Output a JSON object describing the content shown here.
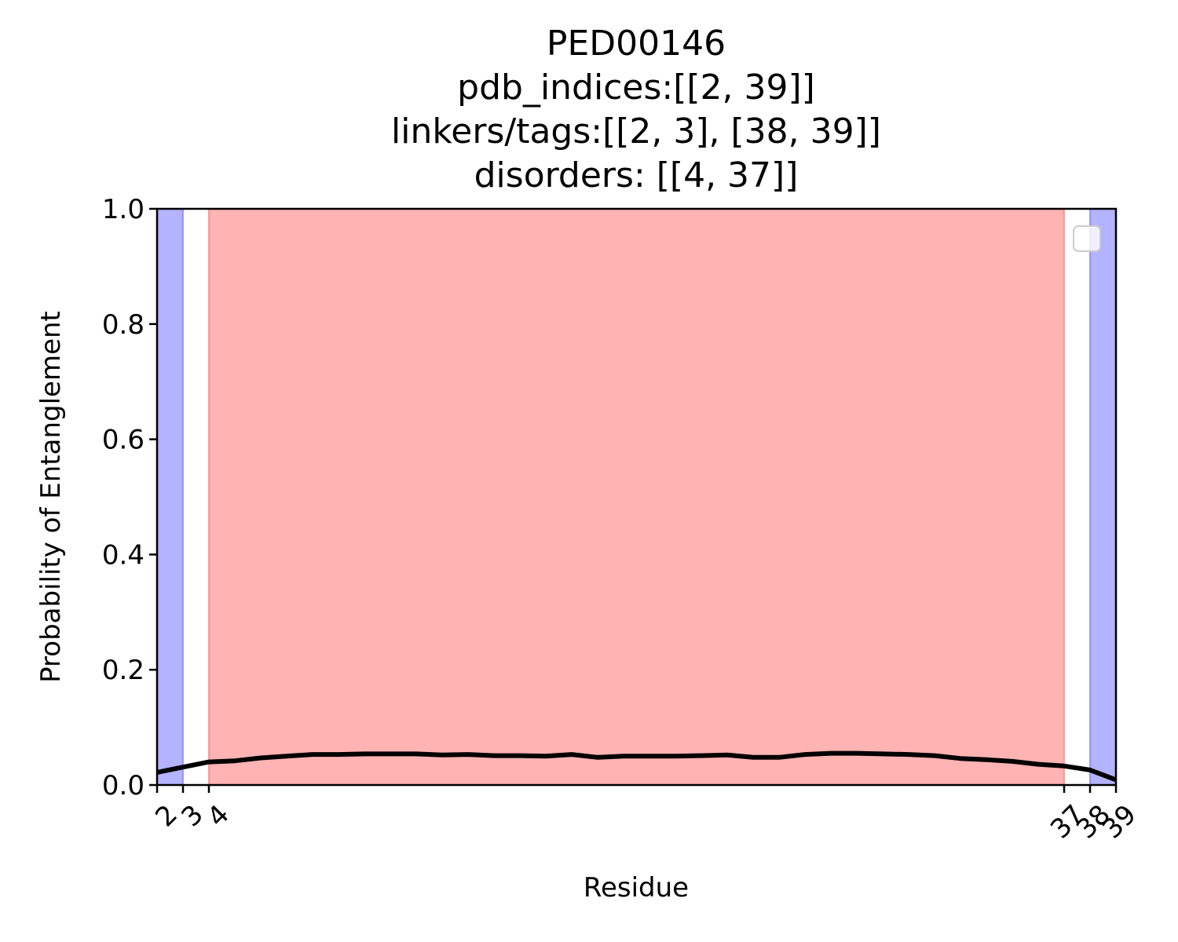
{
  "chart_data": {
    "type": "line",
    "title_lines": [
      "PED00146",
      "pdb_indices:[[2, 39]]",
      "linkers/tags:[[2, 3], [38, 39]]",
      "disorders: [[4, 37]]"
    ],
    "xlabel": "Residue",
    "ylabel": "Probability of Entanglement",
    "xlim": [
      2,
      39
    ],
    "ylim": [
      0,
      1.0
    ],
    "xticks": [
      2,
      3,
      4,
      37,
      38,
      39
    ],
    "xtick_labels": [
      "2",
      "3",
      "4",
      "37",
      "38",
      "39"
    ],
    "yticks": [
      0.0,
      0.2,
      0.4,
      0.6,
      0.8,
      1.0
    ],
    "ytick_labels": [
      "0.0",
      "0.2",
      "0.4",
      "0.6",
      "0.8",
      "1.0"
    ],
    "shaded_regions": [
      {
        "kind": "linker/tag",
        "x0": 2,
        "x1": 3,
        "color": "#b3b3ff"
      },
      {
        "kind": "disorder",
        "x0": 4,
        "x1": 37,
        "color": "#ffb3b3"
      },
      {
        "kind": "linker/tag",
        "x0": 38,
        "x1": 39,
        "color": "#b3b3ff"
      }
    ],
    "series": [
      {
        "color": "#000000",
        "x": [
          2,
          3,
          4,
          5,
          6,
          7,
          8,
          9,
          10,
          11,
          12,
          13,
          14,
          15,
          16,
          17,
          18,
          19,
          20,
          21,
          22,
          23,
          24,
          25,
          26,
          27,
          28,
          29,
          30,
          31,
          32,
          33,
          34,
          35,
          36,
          37,
          38,
          39
        ],
        "y": [
          0.022,
          0.031,
          0.04,
          0.042,
          0.047,
          0.05,
          0.053,
          0.053,
          0.054,
          0.054,
          0.054,
          0.052,
          0.053,
          0.051,
          0.051,
          0.05,
          0.053,
          0.048,
          0.05,
          0.05,
          0.05,
          0.051,
          0.052,
          0.048,
          0.048,
          0.053,
          0.055,
          0.055,
          0.054,
          0.053,
          0.051,
          0.046,
          0.044,
          0.041,
          0.036,
          0.033,
          0.026,
          0.009
        ]
      }
    ],
    "legend": {
      "placement": "upper right",
      "entries": []
    },
    "grid": false
  }
}
